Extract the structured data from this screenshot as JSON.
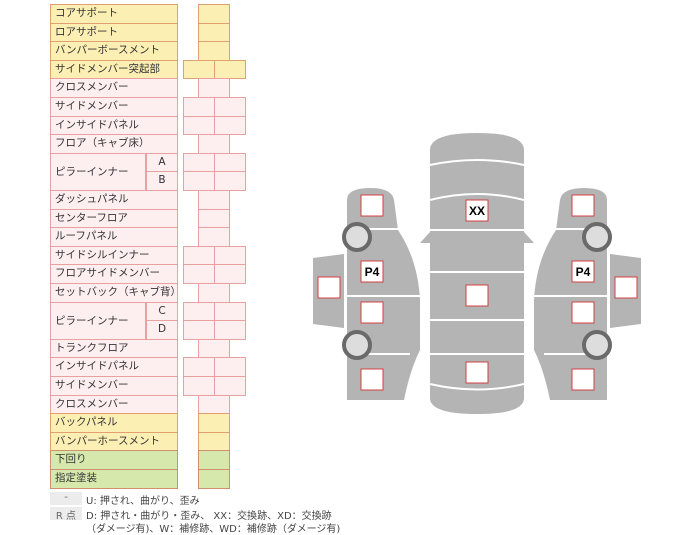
{
  "rows": [
    {
      "label": "コアサポート",
      "type": "single",
      "color": "yellow"
    },
    {
      "label": "ロアサポート",
      "type": "single",
      "color": "yellow"
    },
    {
      "label": "バンパーボースメント",
      "type": "single",
      "color": "yellow"
    },
    {
      "label": "サイドメンバー突起部",
      "type": "double",
      "color": "yellow"
    },
    {
      "label": "クロスメンバー",
      "type": "single",
      "color": "pink"
    },
    {
      "label": "サイドメンバー",
      "type": "double",
      "color": "pink"
    },
    {
      "label": "インサイドパネル",
      "type": "double",
      "color": "pink"
    },
    {
      "label": "フロア（キャブ床）",
      "type": "single",
      "color": "pink"
    },
    {
      "label": "ピラーインナー",
      "sub": "A",
      "type": "double",
      "color": "pink",
      "group_start": true
    },
    {
      "label": "",
      "sub": "B",
      "type": "double",
      "color": "pink"
    },
    {
      "label": "ダッシュパネル",
      "type": "single",
      "color": "pink"
    },
    {
      "label": "センターフロア",
      "type": "single",
      "color": "pink"
    },
    {
      "label": "ルーフパネル",
      "type": "single",
      "color": "pink"
    },
    {
      "label": "サイドシルインナー",
      "type": "double",
      "color": "pink"
    },
    {
      "label": "フロアサイドメンバー",
      "type": "double",
      "color": "pink"
    },
    {
      "label": "セットバック（キャブ背）",
      "type": "single",
      "color": "pink"
    },
    {
      "label": "ピラーインナー",
      "sub": "C",
      "type": "double",
      "color": "pink",
      "group_start": true
    },
    {
      "label": "",
      "sub": "D",
      "type": "double",
      "color": "pink"
    },
    {
      "label": "トランクフロア",
      "type": "single",
      "color": "pink"
    },
    {
      "label": "インサイドパネル",
      "type": "double",
      "color": "pink"
    },
    {
      "label": "サイドメンバー",
      "type": "double",
      "color": "pink"
    },
    {
      "label": "クロスメンバー",
      "type": "single",
      "color": "pink"
    },
    {
      "label": "バックパネル",
      "type": "single",
      "color": "yellow"
    },
    {
      "label": "バンパーホースメント",
      "type": "single",
      "color": "yellow"
    },
    {
      "label": "下回り",
      "type": "single",
      "color": "green"
    },
    {
      "label": "指定塗装",
      "type": "single",
      "color": "green"
    }
  ],
  "legend": {
    "tag1": "-",
    "line1": "U: 押され、曲がり、歪み",
    "tag2": "R 点",
    "line2": "D: 押され・曲がり・歪み、 XX：交換跡、XD：交換跡",
    "line3": "（ダメージ有)、W：補修跡、WD：補修跡（ダメージ有)"
  },
  "diagram": {
    "front_mark": "XX",
    "left_mark": "P4",
    "right_mark": "P4"
  },
  "colors": {
    "body": "#b4b4b4",
    "box_border": "#d04040",
    "yellow": "#fcefb4",
    "pink": "#fdeef0",
    "green": "#d6e8ac"
  }
}
